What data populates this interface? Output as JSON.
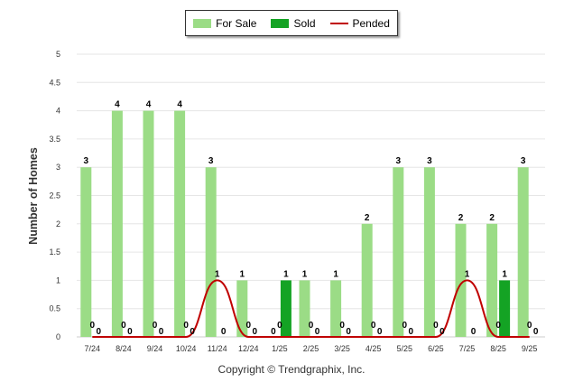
{
  "chart_data": {
    "type": "bar",
    "categories": [
      "7/24",
      "8/24",
      "9/24",
      "10/24",
      "11/24",
      "12/24",
      "1/25",
      "2/25",
      "3/25",
      "4/25",
      "5/25",
      "6/25",
      "7/25",
      "8/25",
      "9/25"
    ],
    "series": [
      {
        "name": "For Sale",
        "type": "bar",
        "color": "#9bdc86",
        "values": [
          3,
          4,
          4,
          4,
          3,
          1,
          0,
          1,
          1,
          2,
          3,
          3,
          2,
          2,
          3
        ]
      },
      {
        "name": "Sold",
        "type": "bar",
        "color": "#14a324",
        "values": [
          0,
          0,
          0,
          0,
          0,
          0,
          1,
          0,
          0,
          0,
          0,
          0,
          0,
          1,
          0
        ]
      },
      {
        "name": "Pended",
        "type": "line",
        "color": "#c00000",
        "values": [
          0,
          0,
          0,
          0,
          1,
          0,
          0,
          0,
          0,
          0,
          0,
          0,
          1,
          0,
          0
        ]
      }
    ],
    "ylabel": "Number of Homes",
    "xlabel": "",
    "ylim": [
      0,
      5
    ],
    "yticks": [
      "0",
      "0.5",
      "1",
      "1.5",
      "2",
      "2.5",
      "3",
      "3.5",
      "4",
      "4.5",
      "5"
    ],
    "grid": true,
    "legend": "top-center"
  },
  "legend": {
    "for_sale": "For Sale",
    "sold": "Sold",
    "pended": "Pended"
  },
  "footer": {
    "copyright": "Copyright © Trendgraphix, Inc."
  }
}
